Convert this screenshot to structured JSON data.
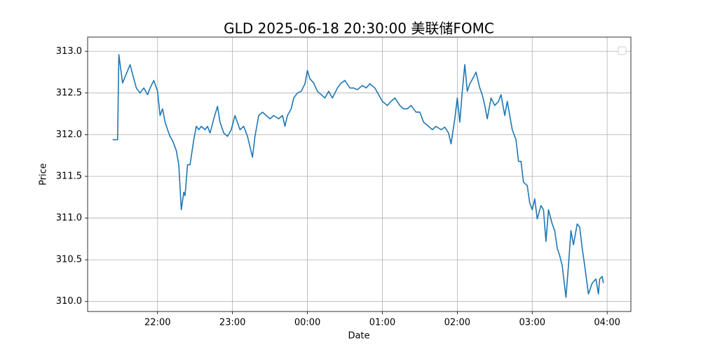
{
  "chart_data": {
    "type": "line",
    "title": "GLD 2025-06-18 20:30:00 美联储FOMC",
    "x_label": "Date",
    "y_label": "Price",
    "x": [
      "21:24",
      "21:28",
      "21:29",
      "21:32",
      "21:35",
      "21:38",
      "21:41",
      "21:43",
      "21:46",
      "21:49",
      "21:52",
      "21:54",
      "21:57",
      "22:00",
      "22:02",
      "22:04",
      "22:06",
      "22:08",
      "22:10",
      "22:12",
      "22:15",
      "22:17",
      "22:19",
      "22:21",
      "22:22",
      "22:24",
      "22:26",
      "22:29",
      "22:31",
      "22:33",
      "22:35",
      "22:38",
      "22:40",
      "22:42",
      "22:45",
      "22:48",
      "22:50",
      "22:53",
      "22:56",
      "22:59",
      "23:02",
      "23:06",
      "23:09",
      "23:12",
      "23:16",
      "23:18",
      "23:21",
      "23:24",
      "23:27",
      "23:30",
      "23:33",
      "23:37",
      "23:40",
      "23:42",
      "23:44",
      "23:47",
      "23:49",
      "23:52",
      "23:55",
      "23:58",
      "00:00",
      "00:02",
      "00:05",
      "00:08",
      "00:11",
      "00:14",
      "00:17",
      "00:20",
      "00:24",
      "00:27",
      "00:30",
      "00:34",
      "00:37",
      "00:40",
      "00:44",
      "00:47",
      "00:50",
      "00:54",
      "00:57",
      "01:00",
      "01:04",
      "01:07",
      "01:10",
      "01:14",
      "01:17",
      "01:20",
      "01:23",
      "01:27",
      "01:30",
      "01:33",
      "01:37",
      "01:40",
      "01:43",
      "01:47",
      "01:50",
      "01:53",
      "01:55",
      "01:58",
      "02:00",
      "02:02",
      "02:04",
      "02:06",
      "02:08",
      "02:10",
      "02:13",
      "02:15",
      "02:18",
      "02:20",
      "02:22",
      "02:24",
      "02:27",
      "02:30",
      "02:33",
      "02:35",
      "02:38",
      "02:40",
      "02:42",
      "02:44",
      "02:47",
      "02:49",
      "02:51",
      "02:53",
      "02:56",
      "02:58",
      "03:00",
      "03:02",
      "03:04",
      "03:07",
      "03:09",
      "03:11",
      "03:13",
      "03:16",
      "03:18",
      "03:20",
      "03:22",
      "03:24",
      "03:27",
      "03:29",
      "03:31",
      "03:33",
      "03:36",
      "03:38",
      "03:40",
      "03:42",
      "03:45",
      "03:48",
      "03:51",
      "03:53",
      "03:54",
      "03:56",
      "03:57"
    ],
    "series": [
      {
        "color": "#1f77b4",
        "values": [
          311.94,
          311.94,
          312.96,
          312.62,
          312.73,
          312.84,
          312.67,
          312.56,
          312.5,
          312.56,
          312.48,
          312.56,
          312.65,
          312.52,
          312.23,
          312.31,
          312.15,
          312.06,
          311.98,
          311.93,
          311.81,
          311.64,
          311.1,
          311.31,
          311.27,
          311.64,
          311.64,
          311.94,
          312.1,
          312.06,
          312.1,
          312.06,
          312.1,
          312.02,
          312.19,
          312.34,
          312.15,
          312.02,
          311.98,
          312.06,
          312.23,
          312.06,
          312.1,
          311.98,
          311.73,
          311.98,
          312.23,
          312.27,
          312.23,
          312.19,
          312.23,
          312.19,
          312.23,
          312.1,
          312.23,
          312.31,
          312.44,
          312.5,
          312.52,
          312.61,
          312.77,
          312.67,
          312.62,
          312.52,
          312.48,
          312.44,
          312.52,
          312.44,
          312.56,
          312.62,
          312.65,
          312.56,
          312.56,
          312.54,
          312.59,
          312.56,
          312.61,
          312.56,
          312.48,
          312.4,
          312.35,
          312.4,
          312.44,
          312.35,
          312.31,
          312.31,
          312.35,
          312.27,
          312.27,
          312.15,
          312.1,
          312.06,
          312.1,
          312.06,
          312.09,
          312.02,
          311.89,
          312.19,
          312.44,
          312.15,
          312.52,
          312.84,
          312.52,
          312.61,
          312.69,
          312.75,
          312.56,
          312.48,
          312.35,
          312.19,
          312.44,
          312.35,
          312.4,
          312.48,
          312.23,
          312.4,
          312.23,
          312.06,
          311.94,
          311.68,
          311.68,
          311.43,
          311.39,
          311.18,
          311.1,
          311.23,
          310.99,
          311.15,
          311.1,
          310.72,
          311.1,
          310.93,
          310.85,
          310.64,
          310.55,
          310.43,
          310.05,
          310.43,
          310.85,
          310.68,
          310.93,
          310.89,
          310.64,
          310.43,
          310.09,
          310.22,
          310.27,
          310.09,
          310.27,
          310.3,
          310.22
        ]
      }
    ],
    "xlim": [
      "21:04",
      "04:19"
    ],
    "xticks": [
      "22:00",
      "23:00",
      "00:00",
      "01:00",
      "02:00",
      "03:00",
      "04:00"
    ],
    "ylim": [
      309.88,
      313.17
    ],
    "yticks": [
      {
        "value": 310,
        "label": "310.0"
      },
      {
        "value": 310.5,
        "label": "310.5"
      },
      {
        "value": 311,
        "label": "311.0"
      },
      {
        "value": 311.5,
        "label": "311.5"
      },
      {
        "value": 312,
        "label": "312.0"
      },
      {
        "value": 312.5,
        "label": "312.5"
      },
      {
        "value": 313,
        "label": "313.0"
      }
    ],
    "grid": true
  }
}
